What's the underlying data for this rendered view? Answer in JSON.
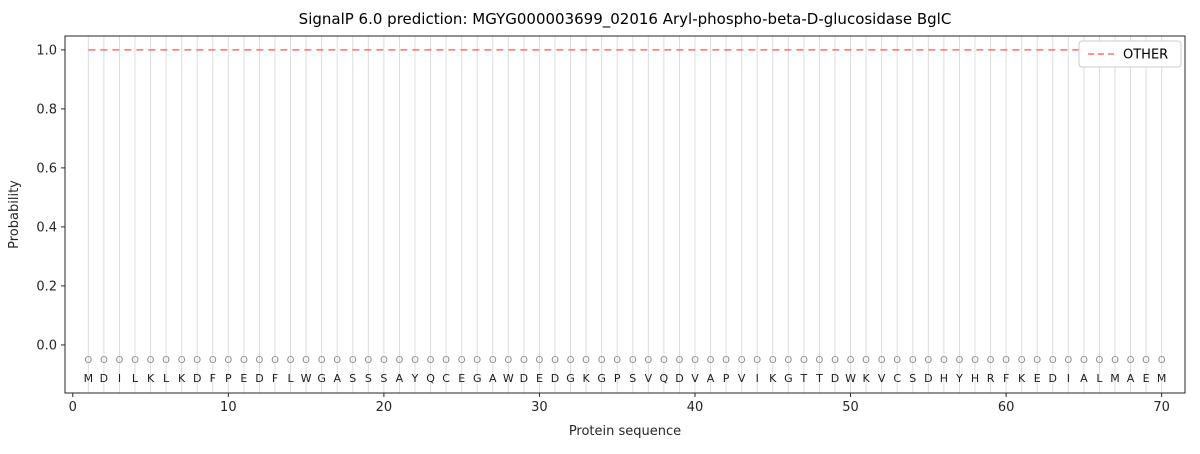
{
  "figure": {
    "title": "SignalP 6.0 prediction: MGYG000003699_02016 Aryl-phospho-beta-D-glucosidase BglC"
  },
  "chart_data": {
    "type": "line",
    "title": "SignalP 6.0 prediction: MGYG000003699_02016 Aryl-phospho-beta-D-glucosidase BglC",
    "xlabel": "Protein sequence",
    "ylabel": "Probability",
    "xlim": [
      -0.5,
      71.5
    ],
    "ylim": [
      -0.163,
      1.047
    ],
    "xticks": [
      0,
      10,
      20,
      30,
      40,
      50,
      60,
      70
    ],
    "yticks": [
      0.0,
      0.2,
      0.4,
      0.6,
      0.8,
      1.0
    ],
    "grid": {
      "vertical_per_position": true,
      "horizontal": false
    },
    "legend": {
      "position": "upper-right",
      "entries": [
        {
          "label": "OTHER",
          "color": "#ff4d4d",
          "linestyle": "dashed"
        }
      ]
    },
    "series": [
      {
        "name": "OTHER",
        "color": "#ff4d4d",
        "linestyle": "dashed",
        "opacity": 0.8,
        "x_range": [
          1,
          70
        ],
        "constant_y": 1.0
      }
    ],
    "sequence": "MDILKLKDFPEDFLWGASSSAYQCEGAWDEDGKGPSVQDVAPVIKGTTDWKVCSDHYHRFKEDIALMAEM",
    "prediction_label": "O",
    "per_position_prediction": "OOOOOOOOOOOOOOOOOOOOOOOOOOOOOOOOOOOOOOOOOOOOOOOOOOOOOOOOOOOOOOOOOOOOOO",
    "prediction_row_y": -0.05,
    "sequence_row_y": -0.112,
    "colors": {
      "grid": "#dcdcdc",
      "axis": "#262626",
      "title": "#000000",
      "sequence_text": "#1a1a1a",
      "prediction_text": "#8c8c8c",
      "other_line": "#ff4d4d",
      "legend_border": "#cccccc",
      "background": "#ffffff"
    }
  }
}
